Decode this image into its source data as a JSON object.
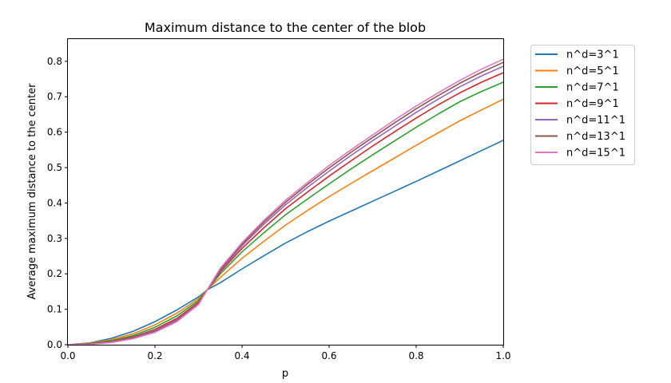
{
  "chart_data": {
    "type": "line",
    "title": "Maximum distance to the center of the blob",
    "xlabel": "p",
    "ylabel": "Average maximum distance to the center",
    "xlim": [
      0.0,
      1.0
    ],
    "ylim": [
      0.0,
      0.865
    ],
    "xticks": [
      0.0,
      0.2,
      0.4,
      0.6,
      0.8,
      1.0
    ],
    "xtick_labels": [
      "0.0",
      "0.2",
      "0.4",
      "0.6",
      "0.8",
      "1.0"
    ],
    "yticks": [
      0.0,
      0.1,
      0.2,
      0.3,
      0.4,
      0.5,
      0.6,
      0.7,
      0.8
    ],
    "ytick_labels": [
      "0.0",
      "0.1",
      "0.2",
      "0.3",
      "0.4",
      "0.5",
      "0.6",
      "0.7",
      "0.8"
    ],
    "grid": false,
    "legend_position": "outside-right",
    "x": [
      0.0,
      0.05,
      0.1,
      0.15,
      0.2,
      0.25,
      0.3,
      0.32,
      0.35,
      0.4,
      0.45,
      0.5,
      0.55,
      0.6,
      0.65,
      0.7,
      0.75,
      0.8,
      0.85,
      0.9,
      0.95,
      1.0
    ],
    "series": [
      {
        "name": "n^d=3^1",
        "color": "#1f77b4",
        "values": [
          0.0,
          0.005,
          0.018,
          0.038,
          0.065,
          0.098,
          0.135,
          0.155,
          0.175,
          0.214,
          0.251,
          0.287,
          0.319,
          0.349,
          0.377,
          0.405,
          0.433,
          0.461,
          0.49,
          0.519,
          0.548,
          0.577
        ]
      },
      {
        "name": "n^d=5^1",
        "color": "#ff7f0e",
        "values": [
          0.0,
          0.004,
          0.014,
          0.031,
          0.056,
          0.089,
          0.13,
          0.155,
          0.19,
          0.244,
          0.292,
          0.338,
          0.379,
          0.418,
          0.455,
          0.491,
          0.527,
          0.563,
          0.598,
          0.632,
          0.663,
          0.693
        ]
      },
      {
        "name": "n^d=7^1",
        "color": "#2ca02c",
        "values": [
          0.0,
          0.003,
          0.011,
          0.026,
          0.049,
          0.081,
          0.125,
          0.155,
          0.2,
          0.262,
          0.316,
          0.367,
          0.411,
          0.454,
          0.496,
          0.536,
          0.575,
          0.614,
          0.651,
          0.686,
          0.715,
          0.741
        ]
      },
      {
        "name": "n^d=9^1",
        "color": "#d62728",
        "values": [
          0.0,
          0.002,
          0.009,
          0.022,
          0.043,
          0.074,
          0.12,
          0.155,
          0.206,
          0.272,
          0.33,
          0.384,
          0.431,
          0.476,
          0.519,
          0.561,
          0.601,
          0.64,
          0.677,
          0.711,
          0.741,
          0.768
        ]
      },
      {
        "name": "n^d=11^1",
        "color": "#9467bd",
        "values": [
          0.0,
          0.002,
          0.008,
          0.02,
          0.04,
          0.07,
          0.117,
          0.155,
          0.21,
          0.279,
          0.34,
          0.395,
          0.444,
          0.49,
          0.534,
          0.576,
          0.616,
          0.656,
          0.693,
          0.728,
          0.759,
          0.786
        ]
      },
      {
        "name": "n^d=13^1",
        "color": "#8c564b",
        "values": [
          0.0,
          0.002,
          0.007,
          0.018,
          0.037,
          0.067,
          0.115,
          0.155,
          0.213,
          0.284,
          0.346,
          0.402,
          0.452,
          0.499,
          0.543,
          0.585,
          0.626,
          0.666,
          0.703,
          0.738,
          0.769,
          0.797
        ]
      },
      {
        "name": "n^d=15^1",
        "color": "#e377c2",
        "values": [
          0.0,
          0.001,
          0.006,
          0.017,
          0.035,
          0.065,
          0.113,
          0.155,
          0.216,
          0.288,
          0.351,
          0.408,
          0.458,
          0.506,
          0.55,
          0.592,
          0.634,
          0.674,
          0.711,
          0.746,
          0.778,
          0.806
        ]
      }
    ]
  }
}
